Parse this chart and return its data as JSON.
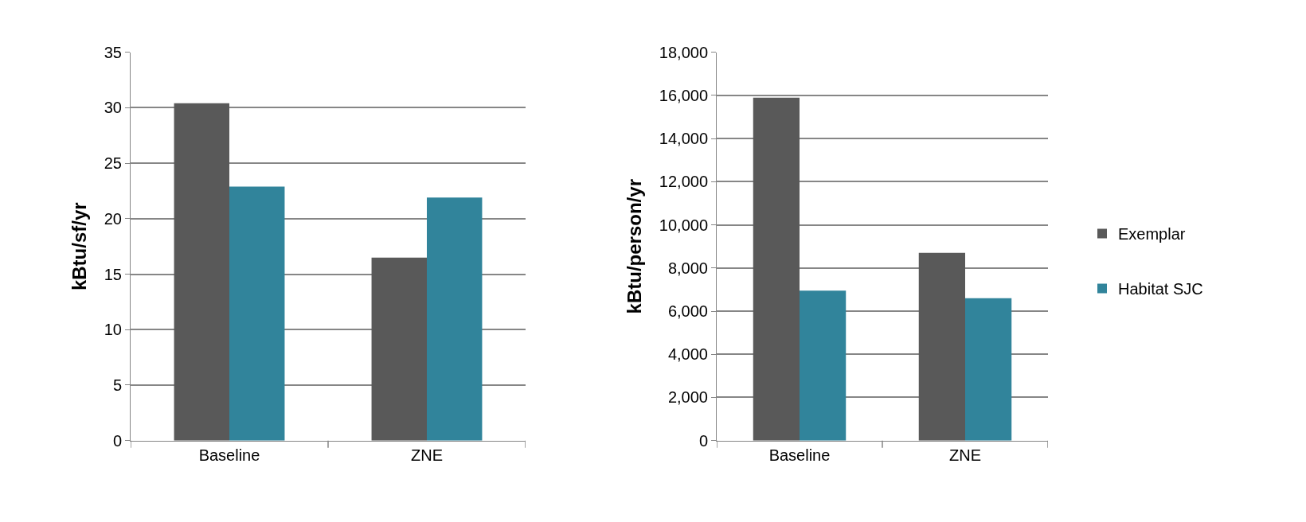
{
  "chart_data": [
    {
      "type": "bar",
      "ylabel": "kBtu/sf/yr",
      "categories": [
        "Baseline",
        "ZNE"
      ],
      "series": [
        {
          "name": "Exemplar",
          "color": "#595959",
          "values": [
            30.4,
            16.5
          ]
        },
        {
          "name": "Habitat SJC",
          "color": "#31849b",
          "values": [
            22.9,
            21.9
          ]
        }
      ],
      "ylim": [
        0,
        35
      ],
      "yticks": [
        0,
        5,
        10,
        15,
        20,
        25,
        30,
        35
      ],
      "grid": "y",
      "legend": "right"
    },
    {
      "type": "bar",
      "ylabel": "kBtu/person/yr",
      "categories": [
        "Baseline",
        "ZNE"
      ],
      "series": [
        {
          "color": "#595959",
          "values": [
            15900,
            8700
          ]
        },
        {
          "color": "#31849b",
          "values": [
            6950,
            6600
          ]
        }
      ],
      "ylim": [
        0,
        18000
      ],
      "yticks": [
        {
          "value": 0,
          "label": "0"
        },
        {
          "value": 2000,
          "label": "2,000"
        },
        {
          "value": 4000,
          "label": "4,000"
        },
        {
          "value": 6000,
          "label": "6,000"
        },
        {
          "value": 8000,
          "label": "8,000"
        },
        {
          "value": 10000,
          "label": "10,000"
        },
        {
          "value": 12000,
          "label": "12,000"
        },
        {
          "value": 14000,
          "label": "14,000"
        },
        {
          "value": 16000,
          "label": "16,000"
        },
        {
          "value": 18000,
          "label": "18,000"
        }
      ],
      "grid": "y"
    }
  ]
}
